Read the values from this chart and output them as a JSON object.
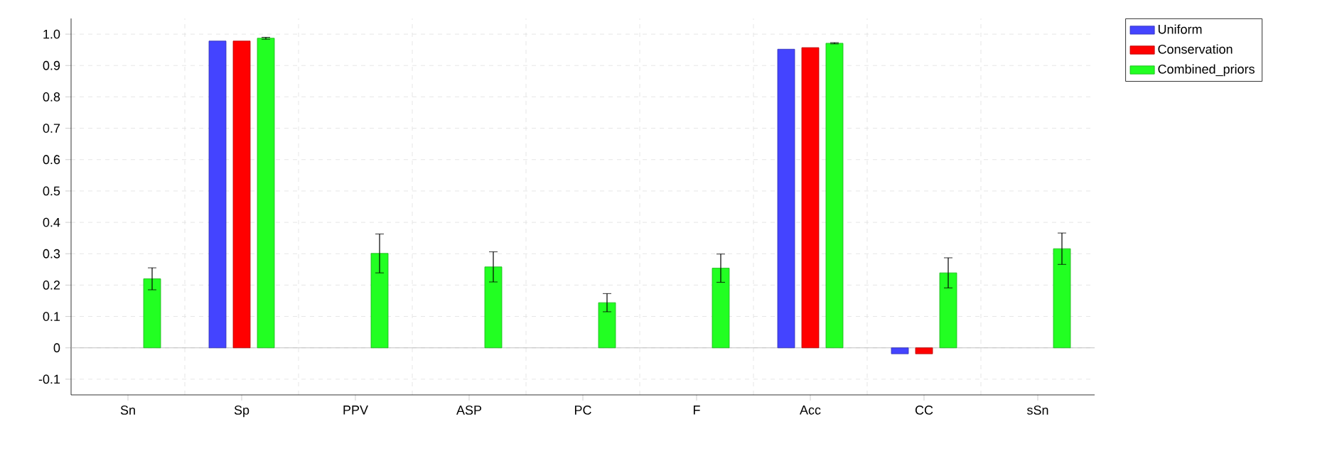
{
  "chart_data": {
    "type": "bar",
    "categories": [
      "Sn",
      "Sp",
      "PPV",
      "ASP",
      "PC",
      "F",
      "Acc",
      "CC",
      "sSn"
    ],
    "series": [
      {
        "name": "Uniform",
        "color": "#4444ff",
        "values": [
          null,
          0.978,
          null,
          null,
          null,
          null,
          0.952,
          -0.019,
          null
        ]
      },
      {
        "name": "Conservation",
        "color": "#ff0000",
        "values": [
          null,
          0.978,
          null,
          null,
          null,
          null,
          0.957,
          -0.019,
          null
        ]
      },
      {
        "name": "Combined_priors",
        "color": "#22ff22",
        "values": [
          0.22,
          0.987,
          0.301,
          0.258,
          0.144,
          0.254,
          0.971,
          0.239,
          0.316
        ],
        "errors": [
          0.035,
          0.003,
          0.062,
          0.048,
          0.029,
          0.045,
          0.002,
          0.048,
          0.05
        ]
      }
    ],
    "ylim": [
      -0.15,
      1.05
    ],
    "yticks": [
      -0.1,
      0,
      0.1,
      0.2,
      0.3,
      0.4,
      0.5,
      0.6,
      0.7,
      0.8,
      0.9,
      {
        "value": 1,
        "label": "1.0"
      }
    ],
    "grid": true,
    "legend": "top right"
  }
}
